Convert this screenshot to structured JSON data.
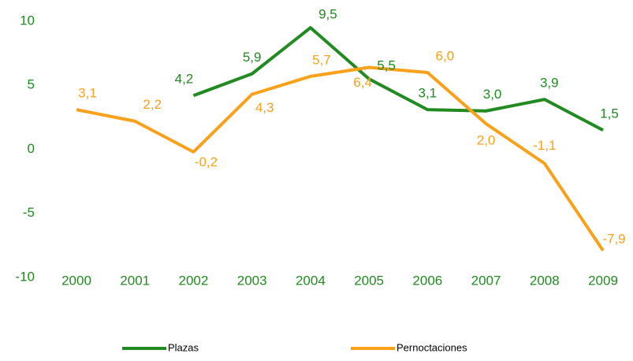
{
  "chart_data": {
    "type": "line",
    "categories": [
      "2000",
      "2001",
      "2002",
      "2003",
      "2004",
      "2005",
      "2006",
      "2007",
      "2008",
      "2009"
    ],
    "series": [
      {
        "name": "Plazas",
        "color": "#218a21",
        "values": [
          null,
          null,
          4.2,
          5.9,
          9.5,
          5.5,
          3.1,
          3.0,
          3.9,
          1.5
        ],
        "value_labels": [
          null,
          null,
          "4,2",
          "5,9",
          "9,5",
          "5,5",
          "3,1",
          "3,0",
          "3,9",
          "1,5"
        ]
      },
      {
        "name": "Pernoctaciones",
        "color": "#f9a11b",
        "values": [
          3.1,
          2.2,
          -0.2,
          4.3,
          5.7,
          6.4,
          6.0,
          2.0,
          -1.1,
          -7.9
        ],
        "value_labels": [
          "3,1",
          "2,2",
          "-0,2",
          "4,3",
          "5,7",
          "6,4",
          "6,0",
          "2,0",
          "-1,1",
          "-7,9"
        ]
      }
    ],
    "ylim": [
      -10,
      10
    ],
    "yticks": [
      -10,
      -5,
      0,
      5,
      10
    ],
    "tick_color": "#218a21",
    "legend": "bottom"
  }
}
